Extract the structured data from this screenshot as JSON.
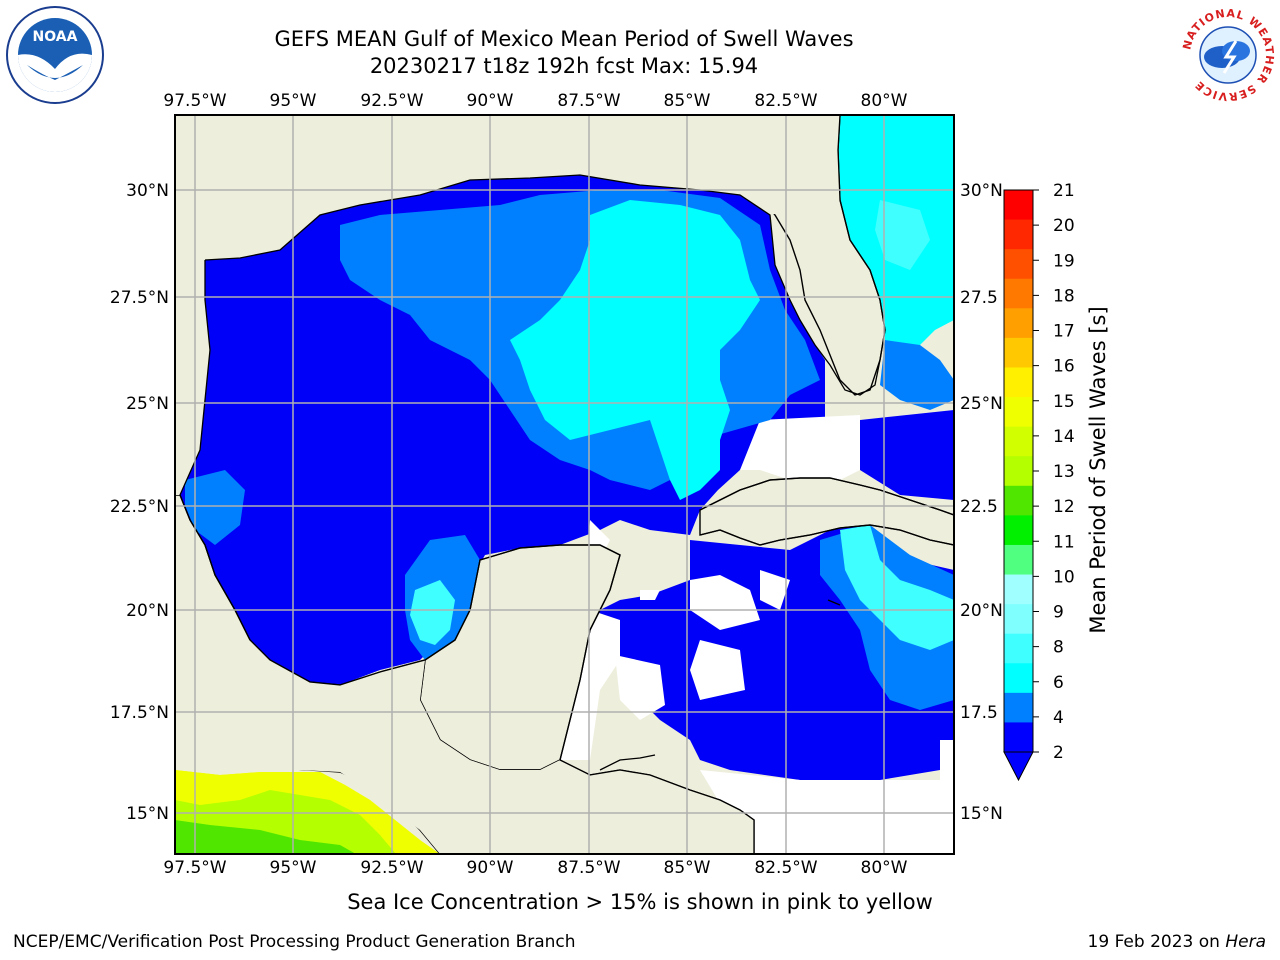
{
  "title": {
    "line1": "GEFS MEAN Gulf of Mexico Mean Period of Swell Waves",
    "line2": "20230217 t18z 192h fcst   Max: 15.94"
  },
  "map": {
    "lon_top_labels": [
      "97.5°W",
      "95°W",
      "92.5°W",
      "90°W",
      "87.5°W",
      "85°W",
      "82.5°W",
      "80°W"
    ],
    "lon_bottom_labels": [
      "97.5°W",
      "95°W",
      "92.5°W",
      "90°W",
      "87.5°W",
      "85°W",
      "82.5°W",
      "80°W"
    ],
    "lat_left_labels": [
      "30°N",
      "27.5°N",
      "25°N",
      "22.5°N",
      "20°N",
      "17.5°N",
      "15°N"
    ],
    "lat_right_labels": [
      "30°N",
      "27.5",
      "25°N",
      "22.5",
      "20°N",
      "17.5",
      "15°N"
    ],
    "colors": {
      "land": "#eeeedd",
      "grid": "#b0b0b0",
      "deep_blue": "#0000f8",
      "mid_blue": "#0080ff",
      "cyan": "#00ffff",
      "light_cyan": "#40ffff"
    }
  },
  "colorbar": {
    "label": "Mean Period of Swell Waves [s]",
    "ticks": [
      "21",
      "20",
      "19",
      "18",
      "17",
      "16",
      "15",
      "14",
      "13",
      "12",
      "11",
      "10",
      "9",
      "8",
      "6",
      "4",
      "2"
    ],
    "colors": [
      "#ff0000",
      "#ff2800",
      "#ff5000",
      "#ff7800",
      "#ffa000",
      "#ffc800",
      "#fff000",
      "#f0ff00",
      "#d2ff00",
      "#b4ff00",
      "#50e600",
      "#00f000",
      "#50ff80",
      "#a0ffff",
      "#80ffff",
      "#40ffff",
      "#00ffff",
      "#0080ff",
      "#0000ff"
    ],
    "extend_color": "#0000ff"
  },
  "subtitle": "Sea Ice Concentration > 15% is shown in pink to yellow",
  "footer": {
    "left": "NCEP/EMC/Verification Post Processing Product Generation Branch",
    "right_prefix": "19 Feb 2023 on ",
    "right_host": "Hera"
  },
  "logos": {
    "noaa_text": "NOAA",
    "nws_ring": "NATIONAL WEATHER SERVICE"
  }
}
